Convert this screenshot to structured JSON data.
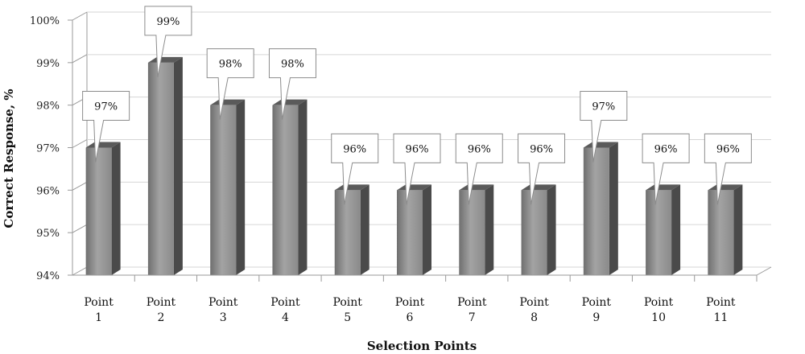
{
  "chart_data": {
    "type": "bar",
    "title": "",
    "xlabel": "Selection Points",
    "ylabel": "Correct Response, %",
    "ylim": [
      94,
      100
    ],
    "y_ticks": [
      "94%",
      "95%",
      "96%",
      "97%",
      "98%",
      "99%",
      "100%"
    ],
    "y_tick_values": [
      94,
      95,
      96,
      97,
      98,
      99,
      100
    ],
    "grid": true,
    "legend": "none",
    "bar_style": "3d",
    "categories": [
      [
        "Point",
        "1"
      ],
      [
        "Point",
        "2"
      ],
      [
        "Point",
        "3"
      ],
      [
        "Point",
        "4"
      ],
      [
        "Point",
        "5"
      ],
      [
        "Point",
        "6"
      ],
      [
        "Point",
        "7"
      ],
      [
        "Point",
        "8"
      ],
      [
        "Point",
        "9"
      ],
      [
        "Point",
        "10"
      ],
      [
        "Point",
        "11"
      ]
    ],
    "values": [
      97,
      99,
      98,
      98,
      96,
      96,
      96,
      96,
      97,
      96,
      96
    ],
    "data_labels": [
      "97%",
      "99%",
      "98%",
      "98%",
      "96%",
      "96%",
      "96%",
      "96%",
      "97%",
      "96%",
      "96%"
    ],
    "colors": {
      "bar_front": "#8a8a8a",
      "bar_side": "#4a4a4a",
      "bar_top": "#5a5a5a",
      "grid": "#d6d6d6",
      "axis": "#999999"
    }
  }
}
